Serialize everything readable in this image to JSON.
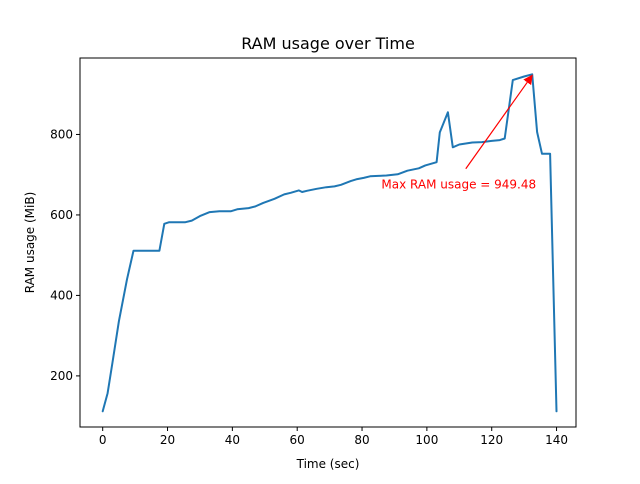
{
  "chart_data": {
    "type": "line",
    "title": "RAM usage over Time",
    "xlabel": "Time (sec)",
    "ylabel": "RAM usage (MiB)",
    "xlim": [
      -7,
      146
    ],
    "ylim": [
      73,
      990
    ],
    "xticks": [
      0,
      20,
      40,
      60,
      80,
      100,
      120,
      140
    ],
    "yticks": [
      200,
      400,
      600,
      800
    ],
    "grid": false,
    "colors": {
      "line": "#1f77b4",
      "annotation": "#ff0000"
    },
    "series": [
      {
        "x": [
          0,
          1.5,
          3,
          5,
          7.5,
          9.5,
          13,
          17.5,
          19,
          20.5,
          25.5,
          27.5,
          30,
          33,
          36,
          39.5,
          41.5,
          45,
          47,
          49.5,
          53,
          56,
          58,
          60.5,
          61.5,
          63,
          66,
          69,
          71.5,
          73.5,
          76.5,
          78.5,
          80.5,
          82.5,
          85,
          87.5,
          91,
          94,
          97.5,
          99.5,
          103,
          104,
          106.5,
          108,
          110,
          114,
          117,
          120,
          122.5,
          124,
          126.5,
          130,
          132.5,
          134,
          135.5,
          138,
          140
        ],
        "y": [
          112,
          157,
          232,
          336,
          440,
          511,
          511,
          511,
          578,
          582,
          582,
          586,
          597,
          607,
          609,
          609,
          614,
          617,
          621,
          630,
          640,
          651,
          655,
          661,
          657,
          660,
          665,
          669,
          671,
          675,
          684,
          689,
          692,
          696,
          697,
          698,
          701,
          710,
          716,
          723,
          731,
          805,
          855,
          768,
          775,
          780,
          781,
          784,
          786,
          790,
          935,
          944,
          949.48,
          806,
          752,
          752,
          112
        ]
      }
    ],
    "annotation": {
      "text": "Max RAM usage = 949.48",
      "xy": [
        132.5,
        949.48
      ],
      "xytext": [
        112,
        690
      ]
    }
  }
}
